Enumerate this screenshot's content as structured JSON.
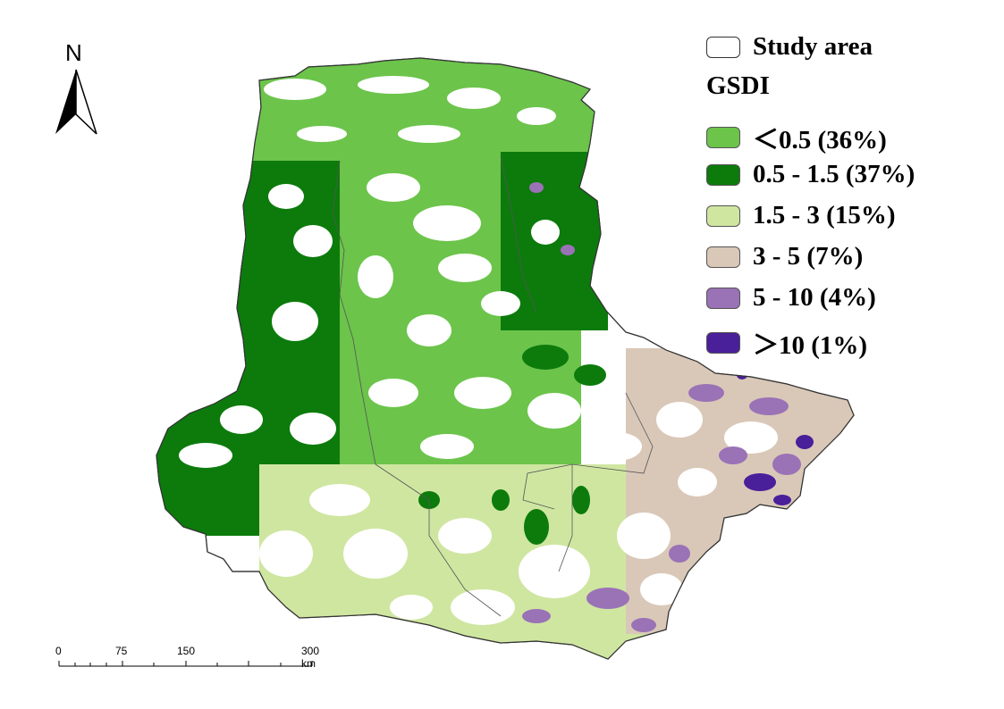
{
  "north_arrow": {
    "letter": "N"
  },
  "legend": {
    "study_area_label": "Study area",
    "title": "GSDI",
    "items": [
      {
        "label": "＜0.5 (36%)",
        "color": "#6cc44b"
      },
      {
        "label": "0.5 - 1.5 (37%)",
        "color": "#0c7b0c"
      },
      {
        "label": "1.5 - 3 (15%)",
        "color": "#cfe6a1"
      },
      {
        "label": "3 - 5 (7%)",
        "color": "#d9c8b8"
      },
      {
        "label": "5 - 10 (4%)",
        "color": "#9a72b6"
      },
      {
        "label": "＞10 (1%)",
        "color": "#4a1f9a"
      }
    ]
  },
  "scale_bar": {
    "ticks": [
      "0",
      "75",
      "150",
      "300 km"
    ]
  }
}
